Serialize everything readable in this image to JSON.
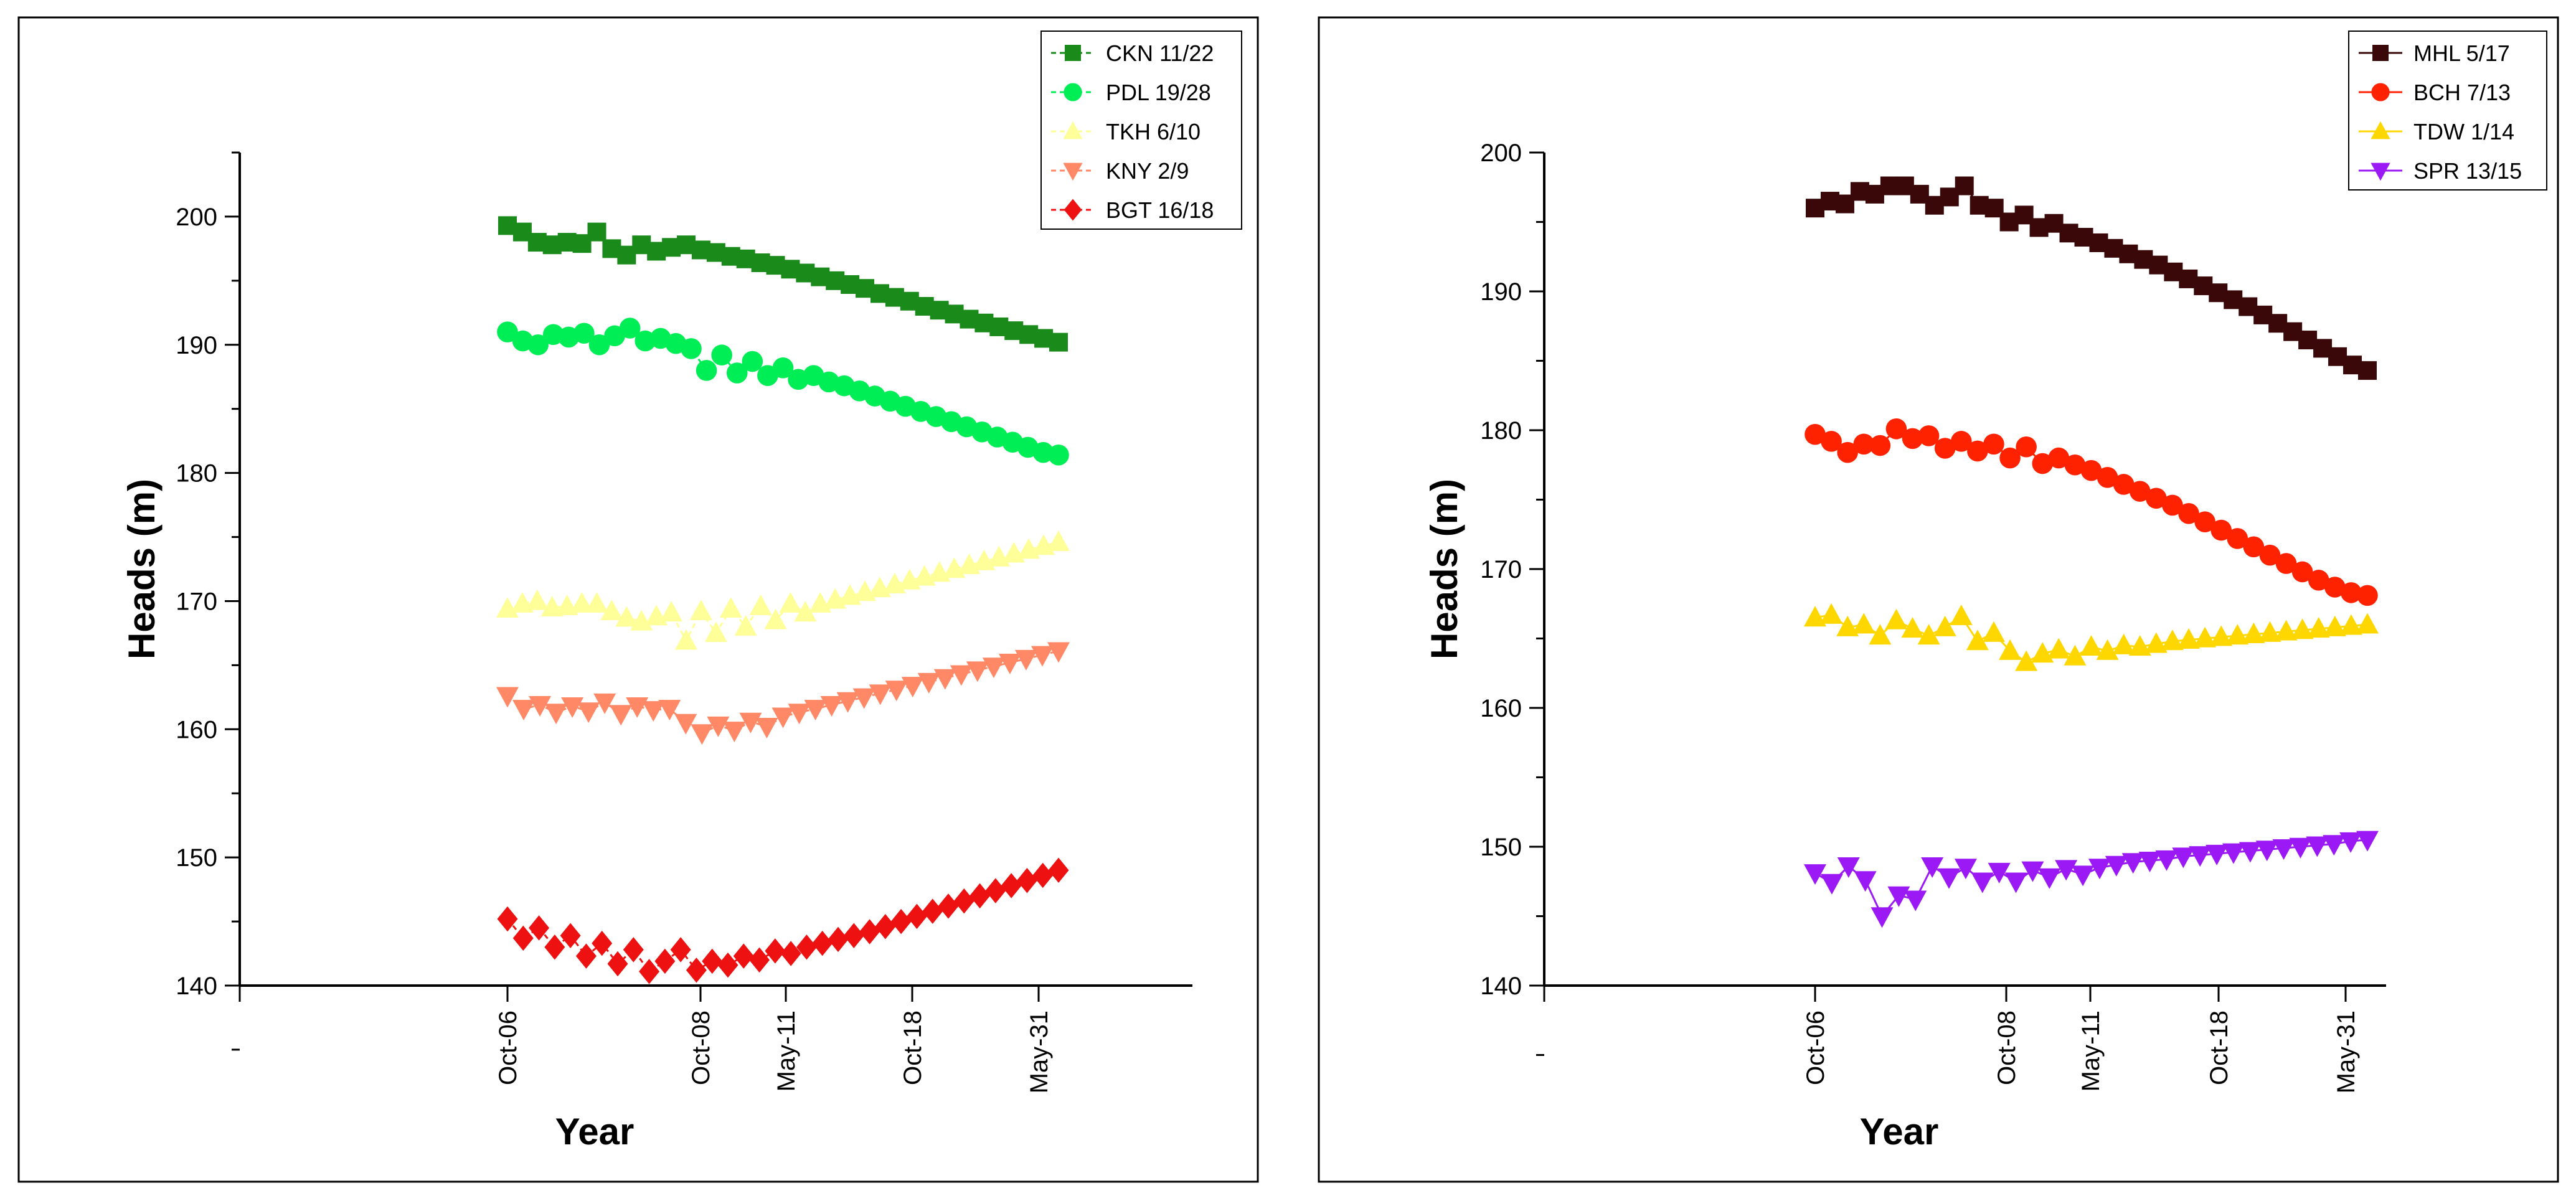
{
  "chart_data": [
    {
      "type": "line",
      "xlabel": "Year",
      "ylabel": "Heads (m)",
      "ylim": [
        140,
        205
      ],
      "yticks": [
        140,
        150,
        160,
        170,
        180,
        190,
        200
      ],
      "xtick_labels": [
        "Oct-06",
        "Oct-08",
        "May-11",
        "Oct-18",
        "May-31"
      ],
      "legend_position": "top-right",
      "series": [
        {
          "name": "CKN 11/22",
          "color": "#1a8a1a",
          "marker": "square",
          "line_style": "dashed",
          "values": [
            199.3,
            198.8,
            198.0,
            197.8,
            198.0,
            197.9,
            198.8,
            197.5,
            197.0,
            197.8,
            197.3,
            197.6,
            197.8,
            197.4,
            197.2,
            196.9,
            196.7,
            196.4,
            196.2,
            195.9,
            195.6,
            195.3,
            195.0,
            194.7,
            194.4,
            194.0,
            193.7,
            193.4,
            193.0,
            192.7,
            192.4,
            192.0,
            191.7,
            191.4,
            191.1,
            190.8,
            190.5,
            190.2
          ]
        },
        {
          "name": "PDL 19/28",
          "color": "#00ee55",
          "marker": "circle",
          "line_style": "dashed",
          "values": [
            191.0,
            190.3,
            190.0,
            190.8,
            190.6,
            190.9,
            190.0,
            190.7,
            191.3,
            190.3,
            190.5,
            190.1,
            189.7,
            188.0,
            189.2,
            187.8,
            188.7,
            187.6,
            188.2,
            187.3,
            187.6,
            187.1,
            186.8,
            186.4,
            186.0,
            185.6,
            185.2,
            184.8,
            184.4,
            184.0,
            183.6,
            183.2,
            182.8,
            182.4,
            182.0,
            181.6,
            181.4
          ]
        },
        {
          "name": "TKH 6/10",
          "color": "#ffff99",
          "marker": "triangle-up",
          "line_style": "dashed",
          "values": [
            169.4,
            169.8,
            170.0,
            169.5,
            169.6,
            169.8,
            169.8,
            169.2,
            168.7,
            168.4,
            168.8,
            169.1,
            166.9,
            169.2,
            167.5,
            169.4,
            168.0,
            169.6,
            168.5,
            169.8,
            169.1,
            169.8,
            170.1,
            170.4,
            170.7,
            171.0,
            171.3,
            171.6,
            171.9,
            172.2,
            172.5,
            172.8,
            173.1,
            173.4,
            173.7,
            174.0,
            174.3,
            174.6
          ]
        },
        {
          "name": "KNY 2/9",
          "color": "#ff8866",
          "marker": "triangle-down",
          "line_style": "dashed",
          "values": [
            162.6,
            161.6,
            161.9,
            161.3,
            161.8,
            161.4,
            162.1,
            161.2,
            161.8,
            161.5,
            161.6,
            160.5,
            159.7,
            160.3,
            159.9,
            160.6,
            160.2,
            161.0,
            161.3,
            161.6,
            161.9,
            162.2,
            162.5,
            162.8,
            163.1,
            163.4,
            163.7,
            164.0,
            164.3,
            164.6,
            164.9,
            165.2,
            165.5,
            165.8,
            166.1
          ]
        },
        {
          "name": "BGT 16/18",
          "color": "#ee1111",
          "marker": "diamond",
          "line_style": "dashed",
          "values": [
            145.2,
            143.7,
            144.5,
            143.0,
            143.9,
            142.3,
            143.3,
            141.7,
            142.8,
            141.1,
            141.9,
            142.8,
            141.2,
            141.9,
            141.6,
            142.3,
            142.0,
            142.7,
            142.5,
            143.0,
            143.3,
            143.6,
            143.9,
            144.2,
            144.6,
            145.0,
            145.4,
            145.8,
            146.2,
            146.6,
            147.0,
            147.4,
            147.8,
            148.2,
            148.6,
            149.0
          ]
        }
      ]
    },
    {
      "type": "line",
      "xlabel": "Year",
      "ylabel": "Heads (m)",
      "ylim": [
        140,
        200
      ],
      "yticks": [
        140,
        150,
        160,
        170,
        180,
        190,
        200
      ],
      "xtick_labels": [
        "Oct-06",
        "Oct-08",
        "May-11",
        "Oct-18",
        "May-31"
      ],
      "legend_position": "top-right",
      "series": [
        {
          "name": "MHL 5/17",
          "color": "#3a0808",
          "marker": "square",
          "line_style": "solid",
          "values": [
            196.0,
            196.5,
            196.3,
            197.2,
            197.0,
            197.6,
            197.6,
            197.0,
            196.2,
            196.8,
            197.6,
            196.2,
            196.0,
            195.0,
            195.5,
            194.6,
            194.9,
            194.2,
            193.9,
            193.5,
            193.1,
            192.7,
            192.3,
            191.9,
            191.4,
            190.9,
            190.4,
            189.9,
            189.4,
            188.9,
            188.3,
            187.7,
            187.1,
            186.5,
            185.9,
            185.3,
            184.7,
            184.3
          ]
        },
        {
          "name": "BCH 7/13",
          "color": "#ff2200",
          "marker": "circle",
          "line_style": "solid",
          "values": [
            179.7,
            179.2,
            178.4,
            179.0,
            178.9,
            180.1,
            179.4,
            179.6,
            178.7,
            179.2,
            178.5,
            179.0,
            178.0,
            178.8,
            177.6,
            178.0,
            177.5,
            177.1,
            176.6,
            176.1,
            175.6,
            175.1,
            174.6,
            174.0,
            173.4,
            172.8,
            172.2,
            171.6,
            171.0,
            170.4,
            169.8,
            169.2,
            168.7,
            168.3,
            168.1
          ]
        },
        {
          "name": "TDW 1/14",
          "color": "#ffd700",
          "marker": "triangle-up",
          "line_style": "solid",
          "values": [
            166.5,
            166.7,
            165.8,
            166.0,
            165.2,
            166.3,
            165.7,
            165.2,
            165.8,
            166.6,
            164.8,
            165.4,
            164.1,
            163.3,
            163.9,
            164.2,
            163.7,
            164.4,
            164.1,
            164.5,
            164.4,
            164.6,
            164.8,
            164.9,
            165.0,
            165.1,
            165.2,
            165.3,
            165.4,
            165.5,
            165.6,
            165.7,
            165.8,
            165.9,
            166.0
          ]
        },
        {
          "name": "SPR 13/15",
          "color": "#9b19f5",
          "marker": "triangle-down",
          "line_style": "solid",
          "values": [
            148.1,
            147.4,
            148.6,
            147.6,
            145.0,
            146.5,
            146.2,
            148.6,
            147.8,
            148.5,
            147.5,
            148.2,
            147.5,
            148.3,
            147.8,
            148.4,
            148.0,
            148.5,
            148.7,
            148.9,
            149.0,
            149.1,
            149.3,
            149.4,
            149.5,
            149.6,
            149.7,
            149.8,
            149.9,
            150.0,
            150.1,
            150.2,
            150.4,
            150.5
          ]
        }
      ]
    }
  ]
}
